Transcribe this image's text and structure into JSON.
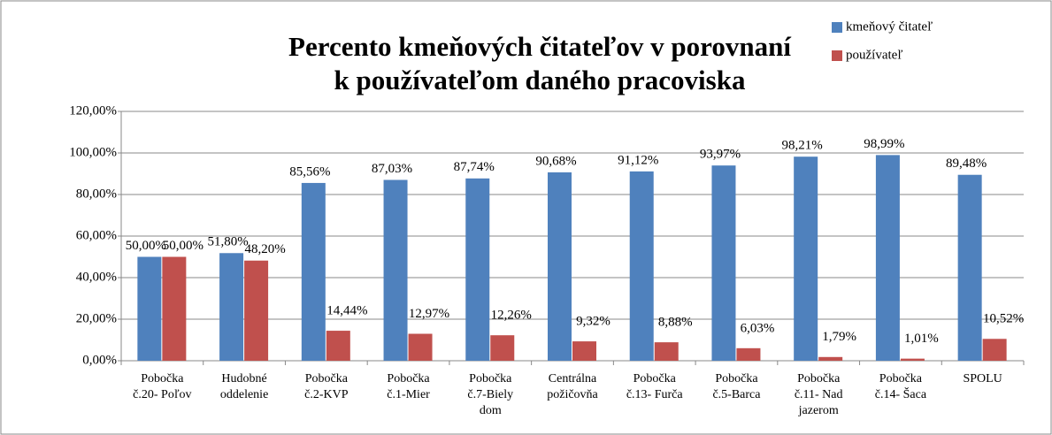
{
  "chart_data": {
    "type": "bar",
    "title": "Percento kmeňových čitateľov v porovnaní\nk používateľom daného pracoviska",
    "categories": [
      "Pobočka\nč.20- Poľov",
      "Hudobné\noddelenie",
      "Pobočka\nč.2-KVP",
      "Pobočka\nč.1-Mier",
      "Pobočka\nč.7-Biely\ndom",
      "Centrálna\npožičovňa",
      "Pobočka\nč.13- Furča",
      "Pobočka\nč.5-Barca",
      "Pobočka\nč.11- Nad\njazerom",
      "Pobočka\nč.14- Šaca",
      "SPOLU"
    ],
    "series": [
      {
        "name": "kmeňový čitateľ",
        "color": "#4f81bd",
        "values": [
          50,
          51.8,
          85.56,
          87.03,
          87.74,
          90.68,
          91.12,
          93.97,
          98.21,
          98.99,
          89.48
        ],
        "value_labels": [
          "50,00%",
          "51,80%",
          "85,56%",
          "87,03%",
          "87,74%",
          "90,68%",
          "91,12%",
          "93,97%",
          "98,21%",
          "98,99%",
          "89,48%"
        ]
      },
      {
        "name": "používateľ",
        "color": "#c0504d",
        "values": [
          50,
          48.2,
          14.44,
          12.97,
          12.26,
          9.32,
          8.88,
          6.03,
          1.79,
          1.01,
          10.52
        ],
        "value_labels": [
          "50,00%",
          "48,20%",
          "14,44%",
          "12,97%",
          "12,26%",
          "9,32%",
          "8,88%",
          "6,03%",
          "1,79%",
          "1,01%",
          "10,52%"
        ]
      }
    ],
    "ylim": [
      0,
      120
    ],
    "yticks": [
      {
        "value": 0,
        "label": "0,00%"
      },
      {
        "value": 20,
        "label": "20,00%"
      },
      {
        "value": 40,
        "label": "40,00%"
      },
      {
        "value": 60,
        "label": "60,00%"
      },
      {
        "value": 80,
        "label": "80,00%"
      },
      {
        "value": 100,
        "label": "100,00%"
      },
      {
        "value": 120,
        "label": "120,00%"
      }
    ],
    "grid": true,
    "legend": "top-right"
  }
}
